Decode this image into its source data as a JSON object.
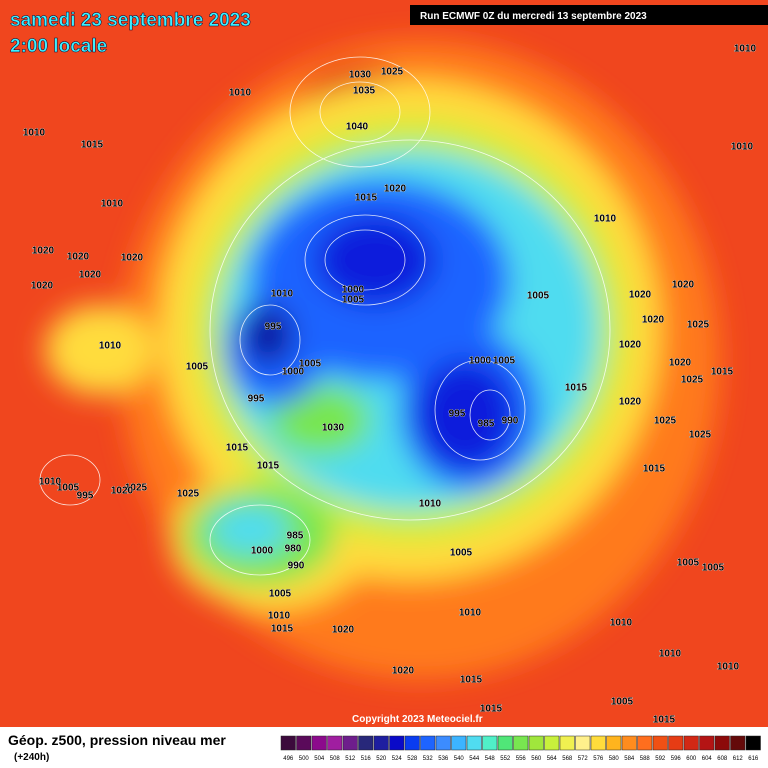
{
  "header": {
    "title": "samedi 23 septembre 2023",
    "subtitle": "2:00 locale",
    "run": "Run ECMWF 0Z du mercredi 13 septembre 2023"
  },
  "footer": {
    "copyright": "Copyright 2023 Meteociel.fr",
    "caption": "Géop. z500, pression niveau mer",
    "lead": "(+240h)"
  },
  "colorbar": {
    "ticks": [
      496,
      500,
      504,
      508,
      512,
      516,
      520,
      524,
      528,
      532,
      536,
      540,
      544,
      548,
      552,
      556,
      560,
      564,
      568,
      572,
      576,
      580,
      584,
      588,
      592,
      596,
      600,
      604,
      608,
      612,
      616
    ],
    "colors": [
      "#3c0a3c",
      "#5a0a5a",
      "#8c0a8c",
      "#a01ea0",
      "#6e1e8c",
      "#28287a",
      "#1e1ea0",
      "#0a0ac8",
      "#0a3cf0",
      "#1e64ff",
      "#3c8cff",
      "#3cb4ff",
      "#50dcf0",
      "#50f0c8",
      "#50e678",
      "#78e650",
      "#a0e63c",
      "#c8f03c",
      "#f0f050",
      "#fff08c",
      "#ffdc3c",
      "#ffb41e",
      "#ff8c1e",
      "#ff6e1e",
      "#f05014",
      "#e63c14",
      "#d22814",
      "#b41414",
      "#8c0a0a",
      "#640a0a",
      "#000000"
    ]
  },
  "isobar_labels": [
    "1010",
    "1010",
    "1030",
    "1025",
    "1035",
    "1040",
    "1010",
    "1015",
    "1010",
    "1020",
    "1015",
    "1010",
    "1010",
    "1020",
    "1020",
    "1020",
    "1020",
    "1020",
    "1010",
    "1005",
    "1000",
    "1005",
    "1020",
    "1020",
    "995",
    "1020",
    "1025",
    "1010",
    "1020",
    "1005",
    "1000",
    "1005",
    "1005",
    "1000",
    "1020",
    "1015",
    "1015",
    "995",
    "1025",
    "1020",
    "995",
    "990",
    "985",
    "1030",
    "1025",
    "1015",
    "1025",
    "1015",
    "1015",
    "1010",
    "1005",
    "995",
    "1025",
    "1020",
    "1025",
    "1010",
    "985",
    "980",
    "1000",
    "990",
    "1005",
    "1005",
    "1005",
    "1005",
    "1010",
    "1015",
    "1020",
    "1010",
    "1010",
    "1020",
    "1015",
    "1010",
    "1010",
    "1005",
    "1015",
    "1015"
  ]
}
